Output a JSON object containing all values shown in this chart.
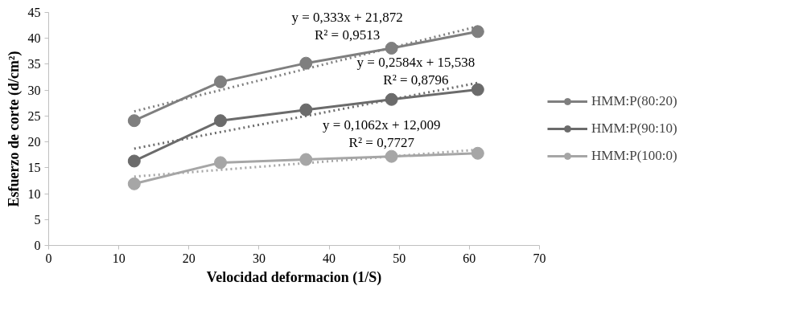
{
  "chart_data": {
    "type": "line",
    "xlabel": "Velocidad deformacion (1/S)",
    "ylabel": "Esfuerzo de corte (d/cm²)",
    "x": [
      12.2,
      24.5,
      36.7,
      48.9,
      61.2
    ],
    "xlim": [
      0,
      70
    ],
    "xticks": [
      0,
      10,
      20,
      30,
      40,
      50,
      60,
      70
    ],
    "ylim": [
      0,
      45
    ],
    "yticks": [
      0,
      5,
      10,
      15,
      20,
      25,
      30,
      35,
      40,
      45
    ],
    "grid": false,
    "legend": "right",
    "marker": "circle",
    "line_style": "solid",
    "series": [
      {
        "name": "HMM:P(80:20)",
        "color": "#7f7f7f",
        "values": [
          24.1,
          31.6,
          35.2,
          38.1,
          41.3
        ]
      },
      {
        "name": "HMM:P(90:10)",
        "color": "#6b6b6b",
        "values": [
          16.3,
          24.1,
          26.2,
          28.2,
          30.1
        ]
      },
      {
        "name": "HMM:P(100:0)",
        "color": "#a6a6a6",
        "values": [
          11.9,
          16.0,
          16.6,
          17.2,
          17.8
        ]
      },
      {
        "type": "line",
        "color": "#7f7f7f",
        "values": [
          25.9,
          30.0,
          34.1,
          38.2,
          42.3
        ],
        "line_style": "dotted",
        "marker": "none"
      },
      {
        "type": "line",
        "color": "#6b6b6b",
        "values": [
          18.7,
          21.9,
          25.0,
          28.2,
          31.4
        ],
        "line_style": "dotted",
        "marker": "none"
      },
      {
        "type": "line",
        "color": "#a6a6a6",
        "values": [
          13.3,
          14.6,
          15.9,
          17.2,
          18.5
        ],
        "line_style": "dotted",
        "marker": "none"
      }
    ],
    "annotations": [
      "y = 0,333x + 21,872",
      "R² = 0,9513",
      "y = 0,2584x + 15,538",
      "R² = 0,8796",
      "y = 0,1062x + 12,009",
      "R² = 0,7727"
    ]
  }
}
